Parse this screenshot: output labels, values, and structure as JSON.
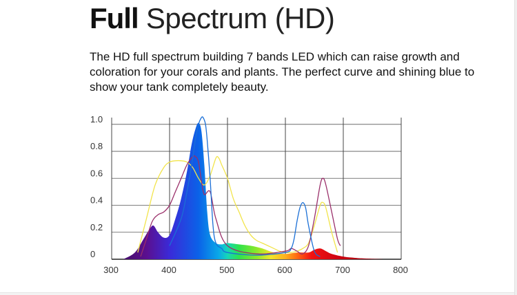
{
  "heading": {
    "bold": "Full",
    "light": "Spectrum (HD)"
  },
  "description": "The HD full spectrum building 7 bands LED which can raise growth and coloration for your corals and plants. The perfect curve and shining blue to show your tank completely beauty.",
  "chart_data": {
    "type": "area",
    "title": "",
    "xlabel": "",
    "ylabel": "",
    "xlim": [
      300,
      800
    ],
    "ylim": [
      0,
      1.05
    ],
    "x_ticks": [
      300,
      400,
      500,
      600,
      700,
      800
    ],
    "y_ticks": [
      0,
      0.2,
      0.4,
      0.6,
      0.8,
      1.0
    ],
    "y_tick_labels": [
      "0",
      "0.2",
      "0.4",
      "0.6",
      "0.8",
      "1.0"
    ],
    "grid": true,
    "legend": "none",
    "filled_spectrum": {
      "x": [
        320,
        340,
        355,
        365,
        372,
        380,
        390,
        400,
        410,
        420,
        430,
        438,
        445,
        450,
        455,
        460,
        465,
        470,
        480,
        490,
        500,
        520,
        540,
        560,
        580,
        600,
        620,
        640,
        650,
        660,
        670,
        680,
        700,
        720,
        740,
        770
      ],
      "y": [
        0,
        0.05,
        0.15,
        0.22,
        0.25,
        0.2,
        0.16,
        0.18,
        0.3,
        0.45,
        0.65,
        0.85,
        0.97,
        1.01,
        0.95,
        0.7,
        0.35,
        0.18,
        0.12,
        0.11,
        0.12,
        0.11,
        0.1,
        0.08,
        0.05,
        0.04,
        0.05,
        0.05,
        0.07,
        0.08,
        0.06,
        0.04,
        0.02,
        0.01,
        0.005,
        0
      ]
    },
    "series": [
      {
        "color": "#f2e44a",
        "x": [
          345,
          360,
          375,
          390,
          400,
          410,
          420,
          430,
          440,
          450,
          460,
          470,
          480,
          485,
          490,
          500,
          510,
          520,
          530,
          540,
          550,
          560,
          570,
          580,
          590,
          600,
          610,
          620,
          630,
          640,
          650,
          660,
          665,
          670,
          680,
          690
        ],
        "y": [
          0.05,
          0.3,
          0.55,
          0.68,
          0.72,
          0.73,
          0.73,
          0.72,
          0.68,
          0.6,
          0.55,
          0.62,
          0.75,
          0.75,
          0.7,
          0.6,
          0.45,
          0.35,
          0.25,
          0.18,
          0.14,
          0.12,
          0.1,
          0.08,
          0.06,
          0.05,
          0.05,
          0.06,
          0.08,
          0.12,
          0.25,
          0.4,
          0.42,
          0.38,
          0.2,
          0.05
        ]
      },
      {
        "color": "#9a2f6a",
        "x": [
          350,
          360,
          370,
          380,
          390,
          400,
          410,
          420,
          430,
          440,
          445,
          450,
          455,
          460,
          470,
          480,
          500,
          550,
          600,
          610,
          620,
          630,
          640,
          650,
          660,
          665,
          670,
          680,
          690,
          695
        ],
        "y": [
          0.02,
          0.15,
          0.28,
          0.33,
          0.35,
          0.4,
          0.5,
          0.6,
          0.7,
          0.76,
          0.76,
          0.72,
          0.58,
          0.48,
          0.5,
          0.3,
          0.1,
          0.04,
          0.06,
          0.08,
          0.06,
          0.04,
          0.1,
          0.3,
          0.55,
          0.6,
          0.55,
          0.35,
          0.15,
          0.1
        ]
      },
      {
        "color": "#1a6fd6",
        "x": [
          400,
          420,
          430,
          440,
          445,
          450,
          455,
          458,
          462,
          465,
          470,
          475,
          480,
          490,
          500,
          550,
          600,
          610,
          615,
          620,
          625,
          630,
          635,
          640,
          650,
          660
        ],
        "y": [
          0.1,
          0.3,
          0.5,
          0.75,
          0.9,
          1.0,
          1.05,
          1.05,
          1.0,
          0.88,
          0.6,
          0.25,
          0.12,
          0.08,
          0.05,
          0.03,
          0.05,
          0.08,
          0.15,
          0.28,
          0.38,
          0.42,
          0.38,
          0.25,
          0.06,
          0.02
        ]
      }
    ]
  }
}
